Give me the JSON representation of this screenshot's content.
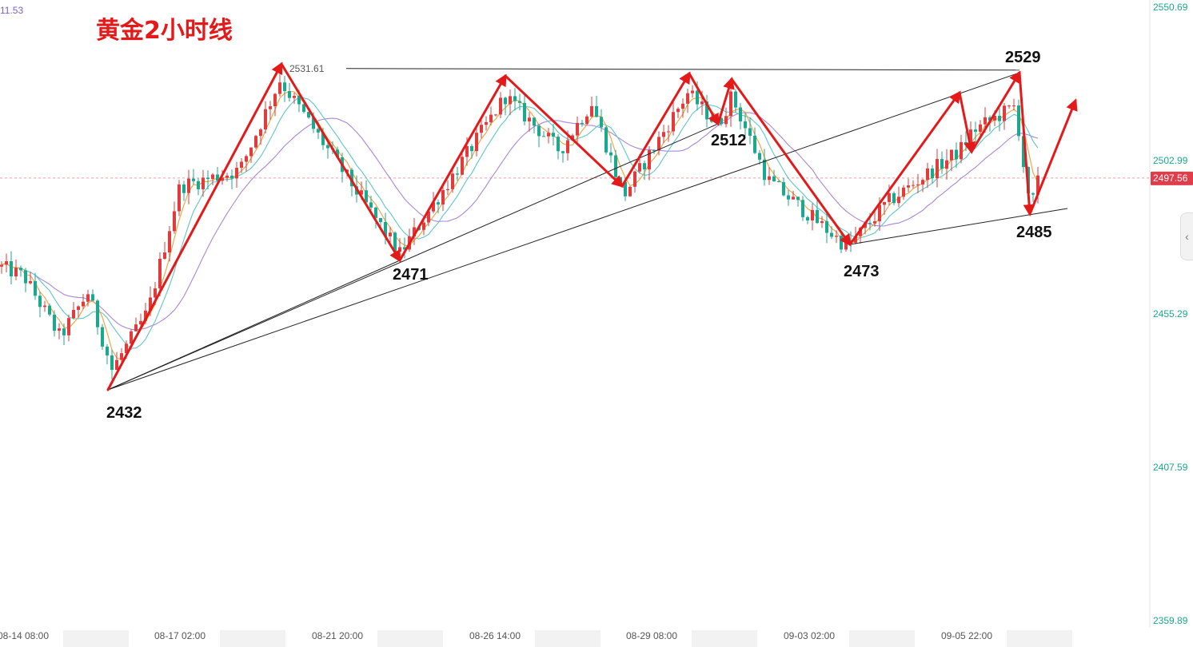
{
  "chart_data": {
    "type": "candlestick",
    "title": "黄金2小时线",
    "y_axis": {
      "ticks": [
        "2550.69",
        "2502.99",
        "2455.29",
        "2407.59",
        "2359.89"
      ],
      "range": [
        2359.89,
        2550.69
      ],
      "current_price": "2497.56",
      "current_price_value": 2497.56,
      "top_left_partial": "11.53"
    },
    "x_axis": {
      "ticks": [
        "08-14 08:00",
        "08-17 02:00",
        "08-21 20:00",
        "08-26 14:00",
        "08-29 08:00",
        "09-03 02:00",
        "09-05 22:00"
      ]
    },
    "high_marker": {
      "label": "2531.61",
      "value": 2531.61
    },
    "pivots": [
      {
        "label": "2432",
        "value": 2432
      },
      {
        "label": "2471",
        "value": 2471
      },
      {
        "label": "2512",
        "value": 2512
      },
      {
        "label": "2473",
        "value": 2473
      },
      {
        "label": "2529",
        "value": 2529
      },
      {
        "label": "2485",
        "value": 2485
      }
    ],
    "annotations": {
      "zigzag_arrows": "red",
      "trendlines": "black",
      "resistance_line_value": 2531.61
    },
    "colors": {
      "title": "#e41a1a",
      "arrow": "#e41a1a",
      "up_candle": "#e23b3b",
      "down_candle": "#1aa88e",
      "ma_fast": "#f3a03a",
      "ma_mid": "#5fc6c7",
      "ma_slow": "#a986d9",
      "axis_text": "#1aa88e",
      "price_tag": "#e23b4a"
    }
  }
}
